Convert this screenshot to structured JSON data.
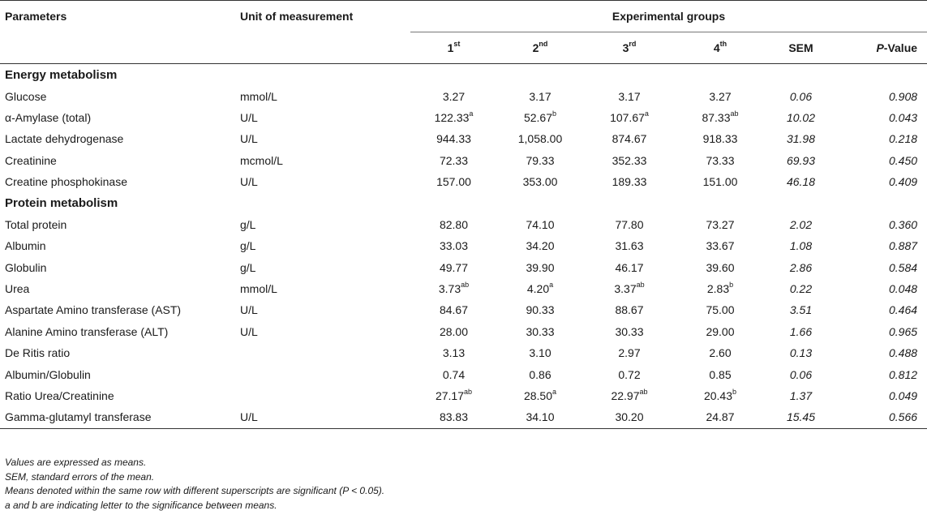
{
  "header": {
    "parameters": "Parameters",
    "unit": "Unit of measurement",
    "experimental_groups": "Experimental groups",
    "groups": [
      {
        "num": "1",
        "sup": "st"
      },
      {
        "num": "2",
        "sup": "nd"
      },
      {
        "num": "3",
        "sup": "rd"
      },
      {
        "num": "4",
        "sup": "th"
      }
    ],
    "sem": "SEM",
    "p_italic": "P",
    "p_rest": "-Value"
  },
  "sections": [
    {
      "title": "Energy metabolism",
      "rows": [
        {
          "param": "Glucose",
          "unit": "mmol/L",
          "g": [
            [
              "3.27",
              ""
            ],
            [
              "3.17",
              ""
            ],
            [
              "3.17",
              ""
            ],
            [
              "3.27",
              ""
            ]
          ],
          "sem": "0.06",
          "p": "0.908"
        },
        {
          "param": "α-Amylase (total)",
          "unit": "U/L",
          "g": [
            [
              "122.33",
              "a"
            ],
            [
              "52.67",
              "b"
            ],
            [
              "107.67",
              "a"
            ],
            [
              "87.33",
              "ab"
            ]
          ],
          "sem": "10.02",
          "p": "0.043"
        },
        {
          "param": "Lactate dehydrogenase",
          "unit": "U/L",
          "g": [
            [
              "944.33",
              ""
            ],
            [
              "1,058.00",
              ""
            ],
            [
              "874.67",
              ""
            ],
            [
              "918.33",
              ""
            ]
          ],
          "sem": "31.98",
          "p": "0.218"
        },
        {
          "param": "Creatinine",
          "unit": "mcmol/L",
          "g": [
            [
              "72.33",
              ""
            ],
            [
              "79.33",
              ""
            ],
            [
              "352.33",
              ""
            ],
            [
              "73.33",
              ""
            ]
          ],
          "sem": "69.93",
          "p": "0.450"
        },
        {
          "param": "Creatine phosphokinase",
          "unit": "U/L",
          "g": [
            [
              "157.00",
              ""
            ],
            [
              "353.00",
              ""
            ],
            [
              "189.33",
              ""
            ],
            [
              "151.00",
              ""
            ]
          ],
          "sem": "46.18",
          "p": "0.409"
        }
      ]
    },
    {
      "title": "Protein metabolism",
      "rows": [
        {
          "param": "Total protein",
          "unit": "g/L",
          "g": [
            [
              "82.80",
              ""
            ],
            [
              "74.10",
              ""
            ],
            [
              "77.80",
              ""
            ],
            [
              "73.27",
              ""
            ]
          ],
          "sem": "2.02",
          "p": "0.360"
        },
        {
          "param": "Albumin",
          "unit": "g/L",
          "g": [
            [
              "33.03",
              ""
            ],
            [
              "34.20",
              ""
            ],
            [
              "31.63",
              ""
            ],
            [
              "33.67",
              ""
            ]
          ],
          "sem": "1.08",
          "p": "0.887"
        },
        {
          "param": "Globulin",
          "unit": "g/L",
          "g": [
            [
              "49.77",
              ""
            ],
            [
              "39.90",
              ""
            ],
            [
              "46.17",
              ""
            ],
            [
              "39.60",
              ""
            ]
          ],
          "sem": "2.86",
          "p": "0.584"
        },
        {
          "param": "Urea",
          "unit": "mmol/L",
          "g": [
            [
              "3.73",
              "ab"
            ],
            [
              "4.20",
              "a"
            ],
            [
              "3.37",
              "ab"
            ],
            [
              "2.83",
              "b"
            ]
          ],
          "sem": "0.22",
          "p": "0.048"
        },
        {
          "param": "Aspartate Amino transferase (AST)",
          "unit": "U/L",
          "g": [
            [
              "84.67",
              ""
            ],
            [
              "90.33",
              ""
            ],
            [
              "88.67",
              ""
            ],
            [
              "75.00",
              ""
            ]
          ],
          "sem": "3.51",
          "p": "0.464"
        },
        {
          "param": "Alanine Amino transferase (ALT)",
          "unit": "U/L",
          "g": [
            [
              "28.00",
              ""
            ],
            [
              "30.33",
              ""
            ],
            [
              "30.33",
              ""
            ],
            [
              "29.00",
              ""
            ]
          ],
          "sem": "1.66",
          "p": "0.965"
        },
        {
          "param": "De Ritis ratio",
          "unit": "",
          "g": [
            [
              "3.13",
              ""
            ],
            [
              "3.10",
              ""
            ],
            [
              "2.97",
              ""
            ],
            [
              "2.60",
              ""
            ]
          ],
          "sem": "0.13",
          "p": "0.488"
        },
        {
          "param": "Albumin/Globulin",
          "unit": "",
          "g": [
            [
              "0.74",
              ""
            ],
            [
              "0.86",
              ""
            ],
            [
              "0.72",
              ""
            ],
            [
              "0.85",
              ""
            ]
          ],
          "sem": "0.06",
          "p": "0.812"
        },
        {
          "param": "Ratio Urea/Creatinine",
          "unit": "",
          "g": [
            [
              "27.17",
              "ab"
            ],
            [
              "28.50",
              "a"
            ],
            [
              "22.97",
              "ab"
            ],
            [
              "20.43",
              "b"
            ]
          ],
          "sem": "1.37",
          "p": "0.049"
        },
        {
          "param": "Gamma-glutamyl transferase",
          "unit": "U/L",
          "g": [
            [
              "83.83",
              ""
            ],
            [
              "34.10",
              ""
            ],
            [
              "30.20",
              ""
            ],
            [
              "24.87",
              ""
            ]
          ],
          "sem": "15.45",
          "p": "0.566"
        }
      ]
    }
  ],
  "notes": [
    "Values are expressed as means.",
    "SEM, standard errors of the mean.",
    "Means denoted within the same row with different superscripts are significant (P < 0.05).",
    "a and b are indicating letter to the significance between means."
  ]
}
